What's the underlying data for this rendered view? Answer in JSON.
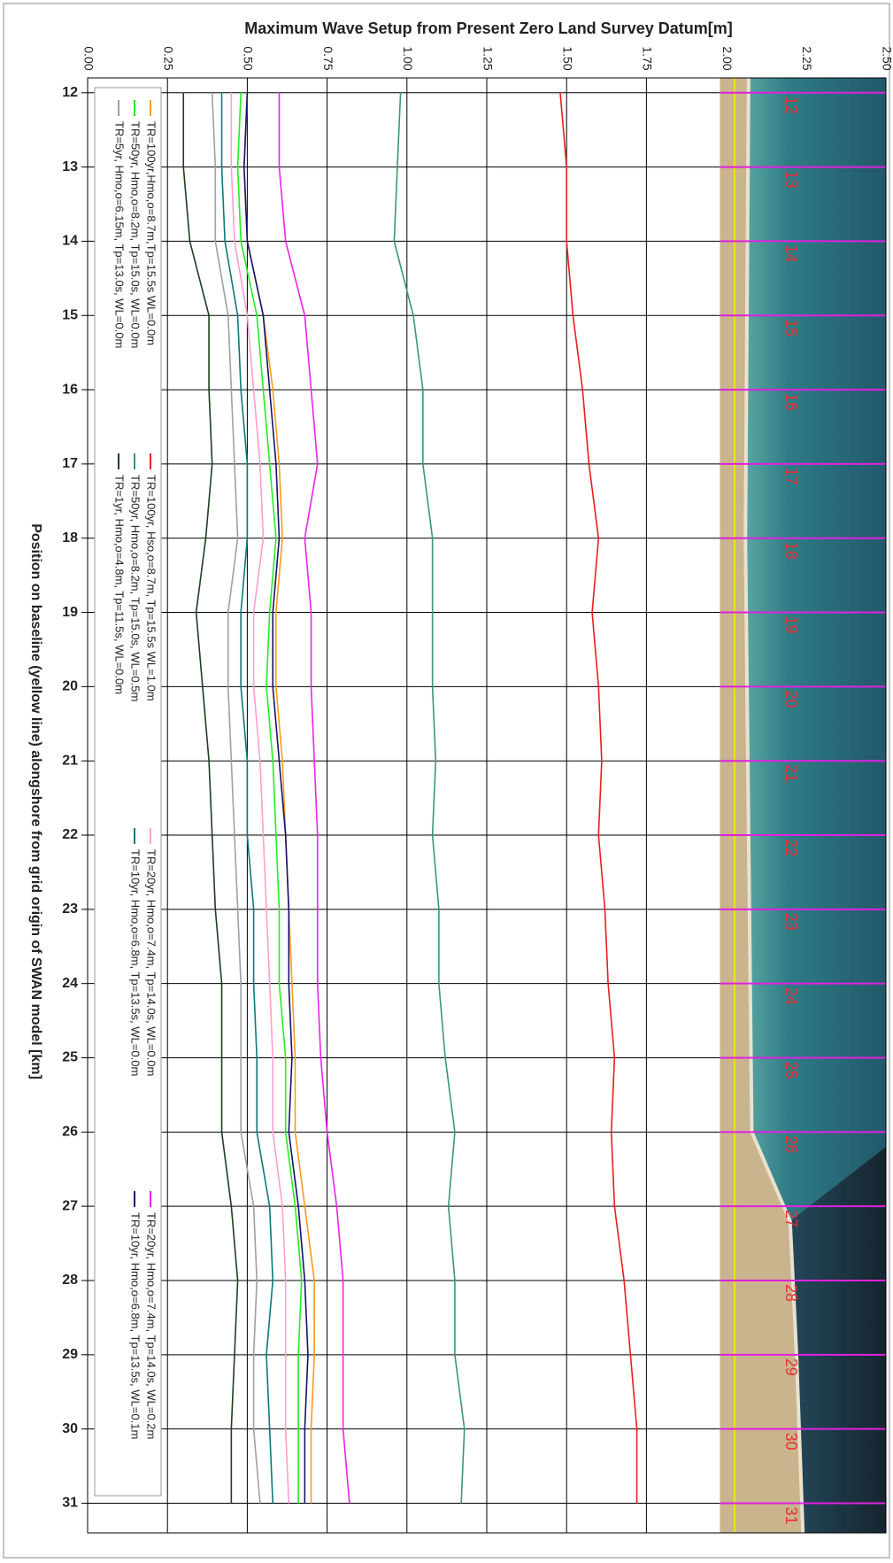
{
  "chart_data": {
    "type": "line",
    "swap_axes": true,
    "title": "Maximum Wave Setup from Present Zero Land Survey Datum[m]",
    "x_label": "Position on baseline (yellow line) alongshore from  grid origin of SWAN model [km]",
    "x": [
      12,
      13,
      14,
      15,
      16,
      17,
      18,
      19,
      20,
      21,
      22,
      23,
      24,
      25,
      26,
      27,
      28,
      29,
      30,
      31
    ],
    "xlim": [
      11.8,
      31.4
    ],
    "xticks": [
      12,
      13,
      14,
      15,
      16,
      17,
      18,
      19,
      20,
      21,
      22,
      23,
      24,
      25,
      26,
      27,
      28,
      29,
      30,
      31
    ],
    "ylim": [
      0,
      2.5
    ],
    "yticks": [
      {
        "value": 0,
        "label": "0.00"
      },
      {
        "value": 0.25,
        "label": "0.25"
      },
      {
        "value": 0.5,
        "label": "0.50"
      },
      {
        "value": 0.75,
        "label": "0.75"
      },
      {
        "value": 1,
        "label": "1.00"
      },
      {
        "value": 1.25,
        "label": "1.25"
      },
      {
        "value": 1.5,
        "label": "1.50"
      },
      {
        "value": 1.75,
        "label": "1.75"
      },
      {
        "value": 2,
        "label": "2.00"
      },
      {
        "value": 2.25,
        "label": "2.25"
      },
      {
        "value": 2.5,
        "label": "2.50"
      }
    ],
    "grid": true,
    "series": [
      {
        "name": "TR=100yr,Hmo,o=8.7m,Tp=15.5s WL=0.0m",
        "color": "#ff9a1a",
        "values": [
          0.5,
          0.49,
          0.5,
          0.55,
          0.58,
          0.6,
          0.61,
          0.59,
          0.59,
          0.61,
          0.62,
          0.63,
          0.64,
          0.65,
          0.65,
          0.68,
          0.71,
          0.71,
          0.7,
          0.7
        ]
      },
      {
        "name": "TR=50yr, Hmo,o=8.2m, Tp=15.0s, WL=0.0m",
        "color": "#22ee22",
        "values": [
          0.48,
          0.47,
          0.48,
          0.53,
          0.55,
          0.57,
          0.59,
          0.57,
          0.56,
          0.58,
          0.59,
          0.6,
          0.6,
          0.62,
          0.62,
          0.65,
          0.67,
          0.66,
          0.66,
          0.66
        ]
      },
      {
        "name": "TR=5yr, Hmo,o=6.15m, Tp=13.0s, WL=0.0m",
        "color": "#a0a0a0",
        "values": [
          0.39,
          0.4,
          0.4,
          0.44,
          0.45,
          0.46,
          0.47,
          0.44,
          0.44,
          0.45,
          0.46,
          0.47,
          0.48,
          0.48,
          0.48,
          0.52,
          0.53,
          0.52,
          0.52,
          0.54
        ]
      },
      {
        "name": "TR=100yr, Hso,o=8.7m, Tp=15.5s WL=1.0m",
        "color": "#ee1c1c",
        "values": [
          1.48,
          1.5,
          1.5,
          1.52,
          1.55,
          1.57,
          1.6,
          1.58,
          1.6,
          1.61,
          1.6,
          1.62,
          1.63,
          1.65,
          1.64,
          1.65,
          1.68,
          1.7,
          1.72,
          1.72
        ]
      },
      {
        "name": "TR=50yr, Hmo,o=8.2m, Tp=15.0s, WL=0.5m",
        "color": "#3a9a6a",
        "values": [
          0.98,
          0.97,
          0.96,
          1.02,
          1.05,
          1.05,
          1.08,
          1.08,
          1.08,
          1.09,
          1.08,
          1.1,
          1.1,
          1.12,
          1.15,
          1.13,
          1.15,
          1.15,
          1.18,
          1.17
        ]
      },
      {
        "name": "TR=1yr, Hmo,o=4.8m, Tp=11.5s, WL=0.0m",
        "color": "#1d3f1d",
        "values": [
          0.3,
          0.3,
          0.32,
          0.38,
          0.38,
          0.39,
          0.37,
          0.34,
          0.36,
          0.38,
          0.39,
          0.4,
          0.42,
          0.42,
          0.42,
          0.45,
          0.47,
          0.46,
          0.45,
          0.45
        ]
      },
      {
        "name": "TR=20yr, Hmo,o=7.4m, Tp=14.0s, WL=0.0m",
        "color": "#ff9ecf",
        "values": [
          0.45,
          0.45,
          0.46,
          0.5,
          0.52,
          0.54,
          0.55,
          0.52,
          0.52,
          0.54,
          0.55,
          0.56,
          0.57,
          0.58,
          0.58,
          0.61,
          0.62,
          0.62,
          0.62,
          0.63
        ]
      },
      {
        "name": "TR=10yr, Hmo,o=6.8m, Tp=13.5s, WL=0.0m",
        "color": "#0b7a7a",
        "values": [
          0.42,
          0.42,
          0.43,
          0.47,
          0.48,
          0.5,
          0.5,
          0.48,
          0.48,
          0.5,
          0.5,
          0.52,
          0.52,
          0.53,
          0.53,
          0.57,
          0.58,
          0.56,
          0.57,
          0.58
        ]
      },
      {
        "name": "TR=20yr, Hmo,o=7.4m, Tp=14.0s, WL=0.2m",
        "color": "#ee22ee",
        "values": [
          0.6,
          0.6,
          0.62,
          0.68,
          0.7,
          0.72,
          0.68,
          0.7,
          0.7,
          0.71,
          0.72,
          0.72,
          0.72,
          0.73,
          0.75,
          0.78,
          0.8,
          0.8,
          0.8,
          0.82
        ]
      },
      {
        "name": "TR=10yr, Hmo,o=6.8m, Tp=13.5s, WL=0.1m",
        "color": "#14146e",
        "values": [
          0.5,
          0.49,
          0.5,
          0.55,
          0.57,
          0.59,
          0.6,
          0.58,
          0.58,
          0.6,
          0.62,
          0.63,
          0.63,
          0.64,
          0.63,
          0.66,
          0.68,
          0.69,
          0.68,
          0.68
        ]
      }
    ]
  }
}
